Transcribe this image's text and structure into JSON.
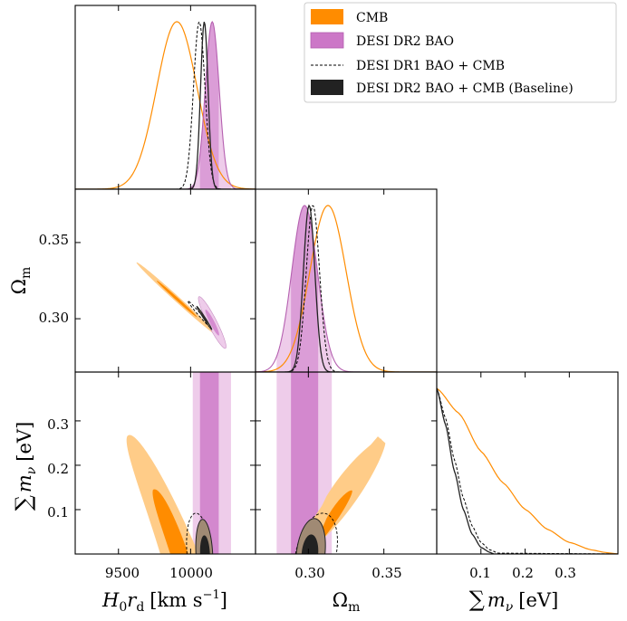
{
  "chart_data": {
    "type": "corner",
    "parameters": [
      {
        "key": "h0rd",
        "label": "H₀r_d [km s⁻¹]",
        "range": [
          9200,
          10450
        ],
        "ticks": [
          9500,
          10000
        ]
      },
      {
        "key": "om",
        "label": "Ω_m",
        "range": [
          0.265,
          0.385
        ],
        "ticks": [
          0.3,
          0.35
        ]
      },
      {
        "key": "mnu",
        "label": "∑m_ν [eV]",
        "range": [
          0.0,
          0.41
        ],
        "ticks": [
          0.1,
          0.2,
          0.3
        ]
      }
    ],
    "tick_text": {
      "h0rd": [
        "9500",
        "10000"
      ],
      "om": [
        "0.30",
        "0.35"
      ],
      "om_y": [
        "0.30",
        "0.35"
      ],
      "mnu": [
        "0.1",
        "0.2",
        "0.3"
      ],
      "mnu_y": [
        "0.1",
        "0.2",
        "0.3"
      ]
    },
    "axis_labels": {
      "x": [
        {
          "main": "H",
          "sub0": "0",
          "main2": "r",
          "sub": "d",
          "unit": "[km s",
          "sup": "−1",
          "close": "]"
        },
        {
          "main": "Ω",
          "sub": "m"
        },
        {
          "main": "∑",
          "var": "m",
          "sub": "ν",
          "unit": "[eV]"
        }
      ],
      "y": [
        {
          "main": "Ω",
          "sub": "m"
        },
        {
          "main": "∑",
          "var": "m",
          "sub": "ν",
          "unit": "[eV]"
        }
      ]
    },
    "legend": {
      "position": "top-right",
      "entries": [
        {
          "label": "CMB",
          "style": "fill",
          "color": "#ff8c00"
        },
        {
          "label": "DESI DR2 BAO",
          "style": "fill",
          "color": "#cc77c7"
        },
        {
          "label": "DESI DR1 BAO + CMB",
          "style": "dashed",
          "color": "#000000"
        },
        {
          "label": "DESI DR2 BAO + CMB (Baseline)",
          "style": "fill",
          "color": "#222222"
        }
      ]
    },
    "colors": {
      "cmb": "#ff8c00",
      "cmb_light": "#ffcc88",
      "bao": "#cc77c7",
      "bao_light": "#eeccea",
      "base": "#222222",
      "base_mid": "#a08a74",
      "dr1": "#000000"
    },
    "series": [
      {
        "name": "CMB",
        "h0rd": {
          "mean": 9905,
          "sigma": 140
        },
        "om": {
          "mean": 0.313,
          "sigma": 0.012
        },
        "mnu_curve": [
          [
            0,
            1.0
          ],
          [
            0.05,
            0.85
          ],
          [
            0.1,
            0.62
          ],
          [
            0.15,
            0.43
          ],
          [
            0.2,
            0.27
          ],
          [
            0.25,
            0.15
          ],
          [
            0.3,
            0.07
          ],
          [
            0.35,
            0.025
          ],
          [
            0.38,
            0.01
          ]
        ]
      },
      {
        "name": "DESI DR2 BAO",
        "h0rd": {
          "mean": 10150,
          "sigma": 48
        },
        "om": {
          "mean": 0.2975,
          "sigma": 0.0085
        },
        "h0rd_band_1sigma": [
          10065,
          10195
        ],
        "h0rd_band_2sigma": [
          10015,
          10280
        ],
        "om_band_1sigma": [
          0.2885,
          0.3065
        ],
        "om_band_2sigma": [
          0.279,
          0.3155
        ]
      },
      {
        "name": "DESI DR1 BAO + CMB",
        "h0rd": {
          "mean": 10060,
          "sigma": 40
        },
        "om": {
          "mean": 0.303,
          "sigma": 0.0044
        },
        "mnu_curve": [
          [
            0,
            1.0
          ],
          [
            0.02,
            0.82
          ],
          [
            0.04,
            0.57
          ],
          [
            0.06,
            0.34
          ],
          [
            0.08,
            0.17
          ],
          [
            0.1,
            0.07
          ],
          [
            0.12,
            0.025
          ],
          [
            0.14,
            0.005
          ]
        ]
      },
      {
        "name": "DESI DR2 BAO + CMB (Baseline)",
        "h0rd": {
          "mean": 10095,
          "sigma": 26
        },
        "om": {
          "mean": 0.3005,
          "sigma": 0.0038
        },
        "mnu_curve": [
          [
            0,
            1.0
          ],
          [
            0.02,
            0.78
          ],
          [
            0.04,
            0.5
          ],
          [
            0.06,
            0.27
          ],
          [
            0.08,
            0.12
          ],
          [
            0.1,
            0.04
          ],
          [
            0.12,
            0.01
          ],
          [
            0.13,
            0.0
          ]
        ]
      }
    ]
  }
}
